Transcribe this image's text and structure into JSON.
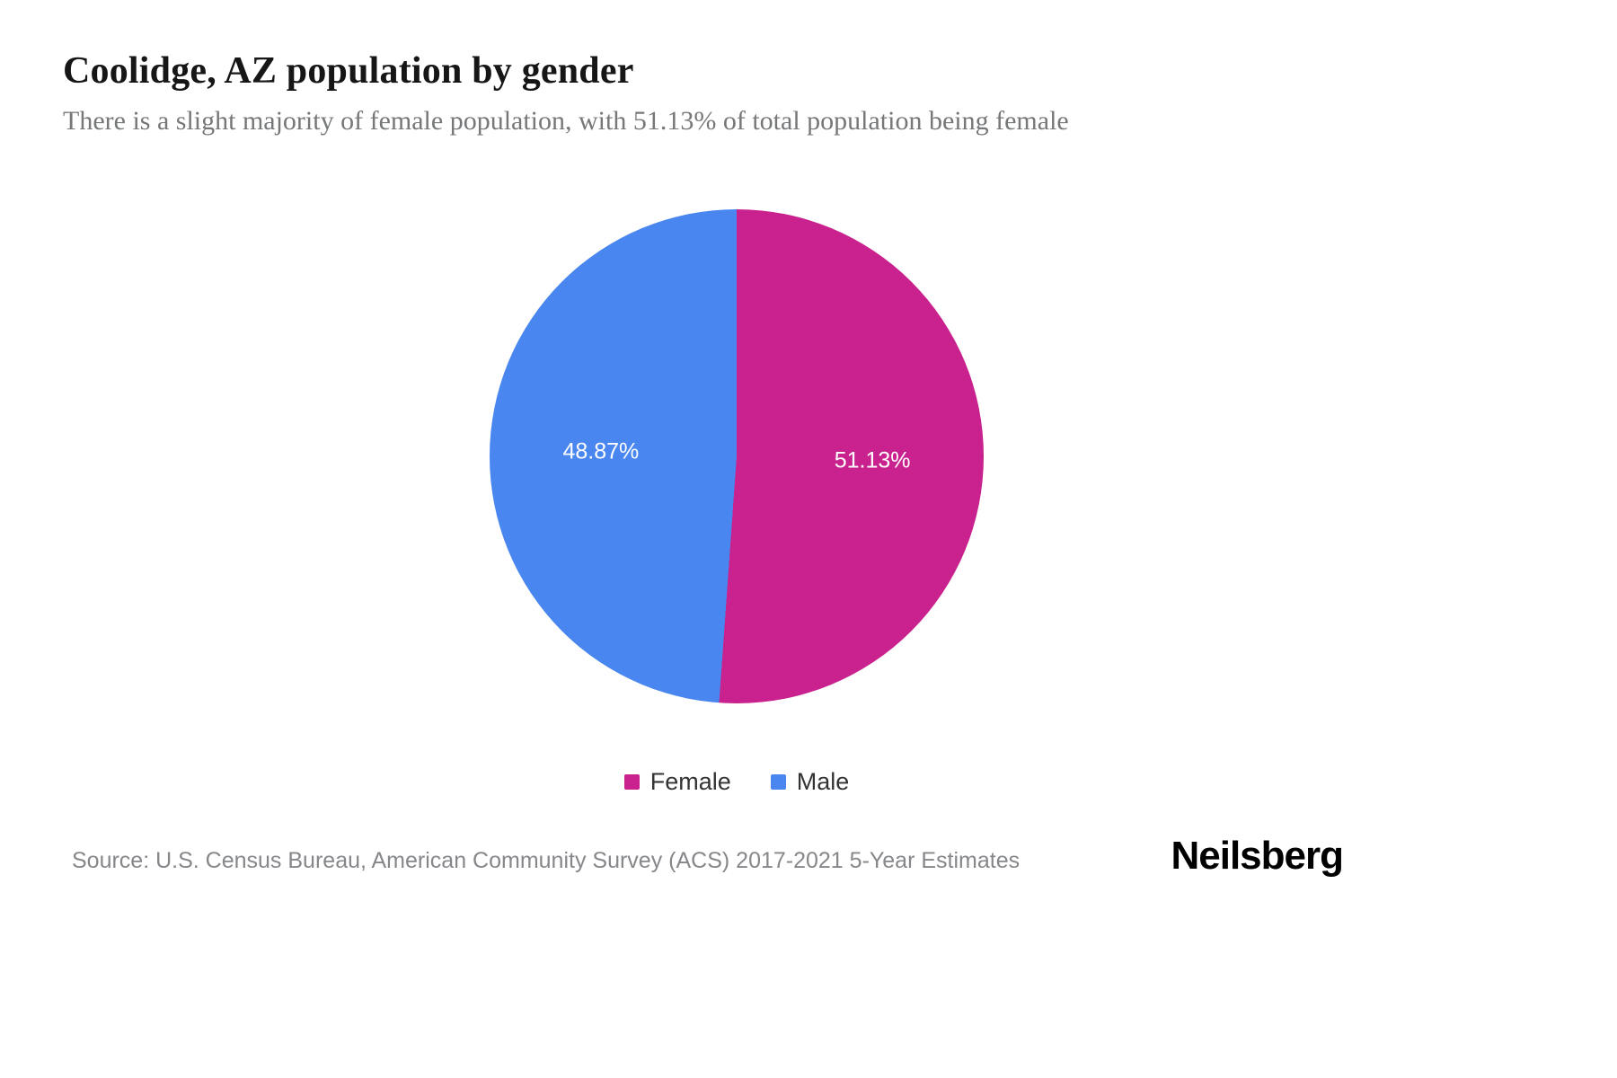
{
  "page": {
    "title": "Coolidge, AZ population by gender",
    "subtitle": "There is a slight majority of female population, with 51.13% of total population being female",
    "source": "Source: U.S. Census Bureau, American Community Survey (ACS) 2017-2021 5-Year Estimates",
    "brand": "Neilsberg"
  },
  "chart_data": {
    "type": "pie",
    "title": "Coolidge, AZ population by gender",
    "start_angle_deg": 0,
    "direction": "clockwise",
    "legend_position": "bottom",
    "slices": [
      {
        "label": "Female",
        "value": 51.13,
        "display": "51.13%",
        "color": "#c9218e"
      },
      {
        "label": "Male",
        "value": 48.87,
        "display": "48.87%",
        "color": "#4a86f0"
      }
    ]
  }
}
